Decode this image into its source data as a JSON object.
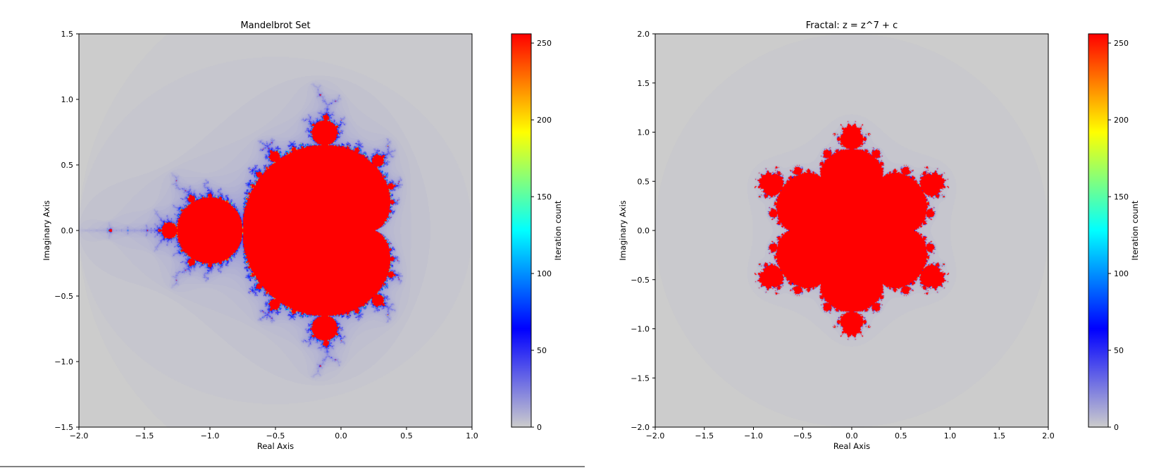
{
  "chart_data": [
    {
      "type": "heatmap",
      "title": "Mandelbrot Set",
      "xlabel": "Real Axis",
      "ylabel": "Imaginary Axis",
      "xlim": [
        -2.0,
        1.0
      ],
      "ylim": [
        -1.5,
        1.5
      ],
      "xticks": [
        -2.0,
        -1.5,
        -1.0,
        -0.5,
        0.0,
        0.5,
        1.0
      ],
      "yticks": [
        -1.5,
        -1.0,
        -0.5,
        0.0,
        0.5,
        1.0,
        1.5
      ],
      "fractal": {
        "power": 2,
        "max_iter": 256
      },
      "colorbar": {
        "label": "Iteration count",
        "range": [
          0,
          256
        ],
        "ticks": [
          0,
          50,
          100,
          150,
          200,
          250
        ],
        "colors": [
          "#cccccc",
          "#0000ff",
          "#00ffff",
          "#ffff00",
          "#ff0000"
        ]
      }
    },
    {
      "type": "heatmap",
      "title": "Fractal: z = z^7 + c",
      "xlabel": "Real Axis",
      "ylabel": "Imaginary Axis",
      "xlim": [
        -2.0,
        2.0
      ],
      "ylim": [
        -2.0,
        2.0
      ],
      "xticks": [
        -2.0,
        -1.5,
        -1.0,
        -0.5,
        0.0,
        0.5,
        1.0,
        1.5,
        2.0
      ],
      "yticks": [
        -2.0,
        -1.5,
        -1.0,
        -0.5,
        0.0,
        0.5,
        1.0,
        1.5,
        2.0
      ],
      "fractal": {
        "power": 7,
        "max_iter": 256
      },
      "colorbar": {
        "label": "Iteration count",
        "range": [
          0,
          256
        ],
        "ticks": [
          0,
          50,
          100,
          150,
          200,
          250
        ],
        "colors": [
          "#cccccc",
          "#0000ff",
          "#00ffff",
          "#ffff00",
          "#ff0000"
        ]
      }
    }
  ]
}
